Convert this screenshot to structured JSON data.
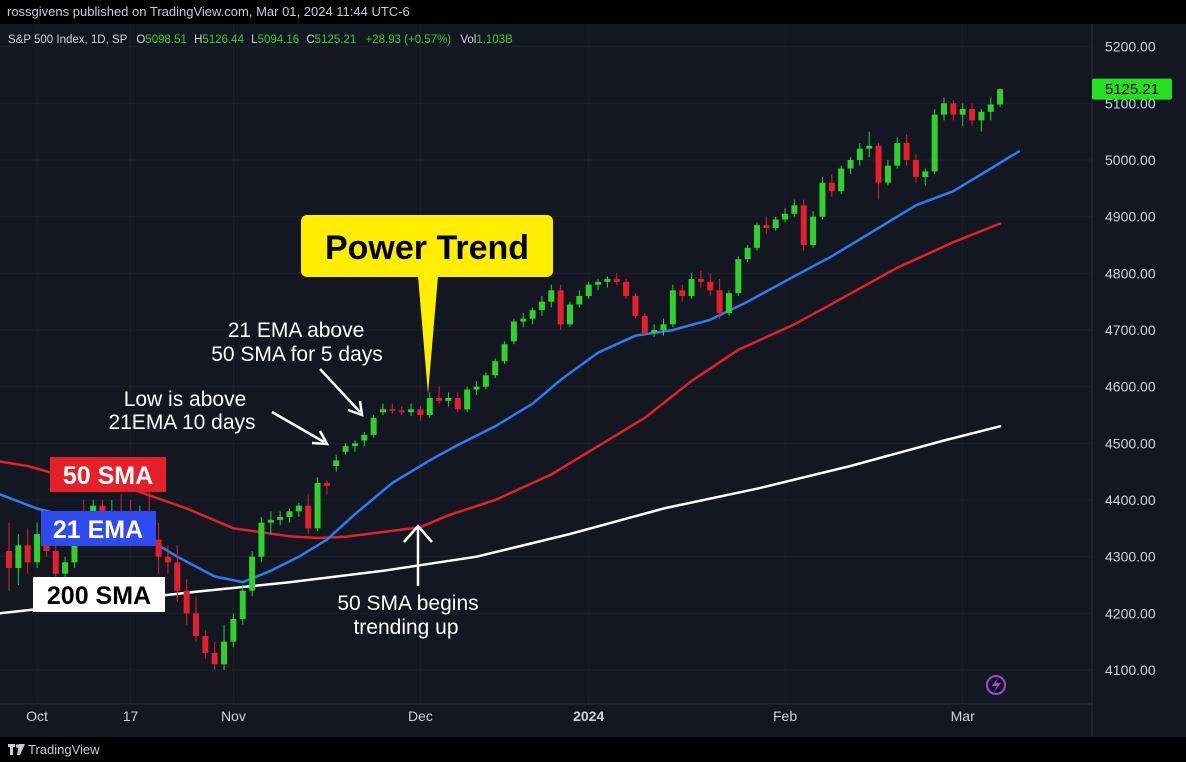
{
  "header": {
    "attribution": "rossgivens published on TradingView.com, Mar 01, 2024 11:44 UTC-6"
  },
  "legend": {
    "symbol": "S&P 500 Index, 1D, SP",
    "o_label": "O",
    "o": "5098.51",
    "h_label": "H",
    "h": "5126.44",
    "l_label": "L",
    "l": "5094.16",
    "c_label": "C",
    "c": "5125.21",
    "change": "+28.93 (+0.57%)",
    "vol_label": "Vol",
    "vol": "1.103B"
  },
  "price_badge": "5125.21",
  "footer": {
    "brand": "TradingView"
  },
  "colors": {
    "up": "#2fd12b",
    "down": "#e5202a",
    "ema21": "#2f7bf0",
    "sma50": "#e5202a",
    "sma200": "#ffffff",
    "callout": "#ffee00",
    "badge": "#26e020"
  },
  "chart_data": {
    "type": "line",
    "ylim": [
      4040,
      5240
    ],
    "y_ticks": [
      "5200.00",
      "5100.00",
      "5000.00",
      "4900.00",
      "4800.00",
      "4700.00",
      "4600.00",
      "4500.00",
      "4400.00",
      "4300.00",
      "4200.00",
      "4100.00"
    ],
    "x_ticks": [
      {
        "label": "Oct",
        "bold": false,
        "i": 3
      },
      {
        "label": "17",
        "bold": false,
        "i": 13
      },
      {
        "label": "Nov",
        "bold": false,
        "i": 24
      },
      {
        "label": "Dec",
        "bold": false,
        "i": 44
      },
      {
        "label": "2024",
        "bold": true,
        "i": 62
      },
      {
        "label": "Feb",
        "bold": false,
        "i": 83
      },
      {
        "label": "Mar",
        "bold": false,
        "i": 102
      }
    ],
    "candles": [
      [
        4310,
        4360,
        4240,
        4280
      ],
      [
        4280,
        4340,
        4250,
        4320
      ],
      [
        4320,
        4350,
        4270,
        4290
      ],
      [
        4290,
        4360,
        4280,
        4340
      ],
      [
        4340,
        4370,
        4300,
        4310
      ],
      [
        4310,
        4340,
        4250,
        4270
      ],
      [
        4270,
        4300,
        4250,
        4290
      ],
      [
        4290,
        4380,
        4280,
        4370
      ],
      [
        4370,
        4400,
        4340,
        4360
      ],
      [
        4360,
        4400,
        4340,
        4390
      ],
      [
        4390,
        4400,
        4330,
        4350
      ],
      [
        4350,
        4400,
        4330,
        4380
      ],
      [
        4380,
        4410,
        4350,
        4370
      ],
      [
        4370,
        4400,
        4330,
        4340
      ],
      [
        4340,
        4390,
        4330,
        4380
      ],
      [
        4380,
        4420,
        4320,
        4330
      ],
      [
        4330,
        4360,
        4270,
        4300
      ],
      [
        4300,
        4320,
        4270,
        4290
      ],
      [
        4290,
        4320,
        4220,
        4240
      ],
      [
        4240,
        4260,
        4180,
        4200
      ],
      [
        4200,
        4230,
        4150,
        4160
      ],
      [
        4160,
        4170,
        4120,
        4130
      ],
      [
        4130,
        4150,
        4100,
        4110
      ],
      [
        4110,
        4180,
        4100,
        4150
      ],
      [
        4150,
        4200,
        4140,
        4190
      ],
      [
        4190,
        4250,
        4180,
        4240
      ],
      [
        4240,
        4310,
        4230,
        4300
      ],
      [
        4300,
        4370,
        4290,
        4360
      ],
      [
        4360,
        4380,
        4340,
        4365
      ],
      [
        4365,
        4380,
        4355,
        4370
      ],
      [
        4370,
        4385,
        4360,
        4380
      ],
      [
        4380,
        4395,
        4370,
        4390
      ],
      [
        4390,
        4410,
        4340,
        4350
      ],
      [
        4350,
        4440,
        4345,
        4430
      ],
      [
        4430,
        4435,
        4410,
        4425
      ],
      [
        4460,
        4480,
        4450,
        4470
      ],
      [
        4485,
        4500,
        4480,
        4495
      ],
      [
        4495,
        4505,
        4485,
        4500
      ],
      [
        4505,
        4520,
        4495,
        4515
      ],
      [
        4515,
        4550,
        4510,
        4545
      ],
      [
        4555,
        4570,
        4550,
        4560
      ],
      [
        4560,
        4570,
        4552,
        4558
      ],
      [
        4558,
        4565,
        4550,
        4555
      ],
      [
        4555,
        4570,
        4548,
        4560
      ],
      [
        4560,
        4565,
        4540,
        4550
      ],
      [
        4550,
        4590,
        4545,
        4580
      ],
      [
        4580,
        4600,
        4570,
        4575
      ],
      [
        4575,
        4590,
        4565,
        4580
      ],
      [
        4580,
        4590,
        4555,
        4560
      ],
      [
        4560,
        4600,
        4555,
        4595
      ],
      [
        4595,
        4610,
        4585,
        4600
      ],
      [
        4600,
        4625,
        4595,
        4620
      ],
      [
        4620,
        4650,
        4615,
        4645
      ],
      [
        4645,
        4680,
        4640,
        4675
      ],
      [
        4680,
        4720,
        4675,
        4715
      ],
      [
        4715,
        4730,
        4705,
        4720
      ],
      [
        4720,
        4740,
        4710,
        4735
      ],
      [
        4735,
        4760,
        4725,
        4750
      ],
      [
        4750,
        4780,
        4740,
        4770
      ],
      [
        4770,
        4780,
        4700,
        4710
      ],
      [
        4710,
        4750,
        4705,
        4745
      ],
      [
        4745,
        4770,
        4740,
        4760
      ],
      [
        4760,
        4785,
        4755,
        4780
      ],
      [
        4780,
        4790,
        4770,
        4785
      ],
      [
        4785,
        4795,
        4775,
        4790
      ],
      [
        4790,
        4800,
        4780,
        4785
      ],
      [
        4785,
        4790,
        4755,
        4760
      ],
      [
        4760,
        4765,
        4720,
        4725
      ],
      [
        4725,
        4730,
        4690,
        4695
      ],
      [
        4695,
        4710,
        4688,
        4700
      ],
      [
        4700,
        4720,
        4690,
        4710
      ],
      [
        4710,
        4780,
        4705,
        4770
      ],
      [
        4770,
        4780,
        4750,
        4760
      ],
      [
        4760,
        4800,
        4755,
        4790
      ],
      [
        4790,
        4805,
        4775,
        4785
      ],
      [
        4785,
        4800,
        4760,
        4770
      ],
      [
        4770,
        4790,
        4720,
        4730
      ],
      [
        4730,
        4770,
        4725,
        4765
      ],
      [
        4765,
        4830,
        4760,
        4825
      ],
      [
        4825,
        4850,
        4820,
        4845
      ],
      [
        4845,
        4890,
        4840,
        4885
      ],
      [
        4885,
        4900,
        4870,
        4880
      ],
      [
        4880,
        4900,
        4875,
        4895
      ],
      [
        4895,
        4915,
        4890,
        4905
      ],
      [
        4905,
        4930,
        4900,
        4920
      ],
      [
        4920,
        4930,
        4840,
        4850
      ],
      [
        4850,
        4910,
        4845,
        4900
      ],
      [
        4900,
        4970,
        4895,
        4960
      ],
      [
        4960,
        4975,
        4935,
        4945
      ],
      [
        4945,
        4990,
        4940,
        4985
      ],
      [
        4985,
        5005,
        4975,
        5000
      ],
      [
        5000,
        5030,
        4990,
        5020
      ],
      [
        5020,
        5050,
        5005,
        5025
      ],
      [
        5025,
        5030,
        4930,
        4960
      ],
      [
        4960,
        5000,
        4955,
        4990
      ],
      [
        4990,
        5040,
        4985,
        5030
      ],
      [
        5030,
        5045,
        4990,
        5000
      ],
      [
        5000,
        5010,
        4960,
        4970
      ],
      [
        4970,
        4985,
        4955,
        4980
      ],
      [
        4980,
        5090,
        4975,
        5080
      ],
      [
        5080,
        5110,
        5070,
        5100
      ],
      [
        5100,
        5105,
        5070,
        5080
      ],
      [
        5080,
        5100,
        5060,
        5090
      ],
      [
        5090,
        5100,
        5060,
        5070
      ],
      [
        5070,
        5090,
        5050,
        5085
      ],
      [
        5085,
        5110,
        5070,
        5098
      ],
      [
        5098,
        5126,
        5094,
        5125
      ]
    ],
    "series": [
      {
        "key": "sma50",
        "values": [
          [
            -1,
            4468
          ],
          [
            2,
            4460
          ],
          [
            8,
            4432
          ],
          [
            13,
            4420
          ],
          [
            19,
            4385
          ],
          [
            24,
            4350
          ],
          [
            30,
            4336
          ],
          [
            33,
            4333
          ],
          [
            36,
            4335
          ],
          [
            44,
            4352
          ],
          [
            47,
            4373
          ],
          [
            52,
            4400
          ],
          [
            58,
            4445
          ],
          [
            63,
            4495
          ],
          [
            68,
            4545
          ],
          [
            73,
            4610
          ],
          [
            78,
            4665
          ],
          [
            84,
            4710
          ],
          [
            89,
            4755
          ],
          [
            95,
            4810
          ],
          [
            101,
            4855
          ],
          [
            106,
            4888
          ]
        ]
      },
      {
        "key": "ema21",
        "values": [
          [
            -1,
            4410
          ],
          [
            3,
            4385
          ],
          [
            9,
            4360
          ],
          [
            14,
            4340
          ],
          [
            18,
            4300
          ],
          [
            22,
            4265
          ],
          [
            25,
            4255
          ],
          [
            28,
            4275
          ],
          [
            31,
            4300
          ],
          [
            34,
            4330
          ],
          [
            37,
            4375
          ],
          [
            41,
            4430
          ],
          [
            45,
            4470
          ],
          [
            48,
            4497
          ],
          [
            52,
            4530
          ],
          [
            56,
            4570
          ],
          [
            59,
            4612
          ],
          [
            63,
            4660
          ],
          [
            67,
            4690
          ],
          [
            71,
            4700
          ],
          [
            75,
            4718
          ],
          [
            79,
            4750
          ],
          [
            84,
            4795
          ],
          [
            88,
            4830
          ],
          [
            93,
            4880
          ],
          [
            97,
            4920
          ],
          [
            101,
            4945
          ],
          [
            105,
            4985
          ],
          [
            108,
            5015
          ]
        ]
      },
      {
        "key": "sma200",
        "values": [
          [
            -1,
            4200
          ],
          [
            10,
            4220
          ],
          [
            20,
            4238
          ],
          [
            30,
            4255
          ],
          [
            40,
            4275
          ],
          [
            50,
            4300
          ],
          [
            60,
            4340
          ],
          [
            70,
            4385
          ],
          [
            80,
            4420
          ],
          [
            90,
            4460
          ],
          [
            100,
            4505
          ],
          [
            106,
            4530
          ]
        ]
      }
    ],
    "labels": [
      {
        "key": "sma50_label",
        "text": "50 SMA"
      },
      {
        "key": "ema21_label",
        "text": "21 EMA"
      },
      {
        "key": "sma200_label",
        "text": "200 SMA"
      }
    ],
    "annotations": {
      "power_trend": "Power Trend",
      "ema_above_1": "21 EMA above",
      "ema_above_2": "50 SMA for 5 days",
      "low_above_1": "Low is above",
      "low_above_2": "21EMA 10 days",
      "sma_begins_1": "50 SMA begins",
      "sma_begins_2": "trending up"
    }
  }
}
